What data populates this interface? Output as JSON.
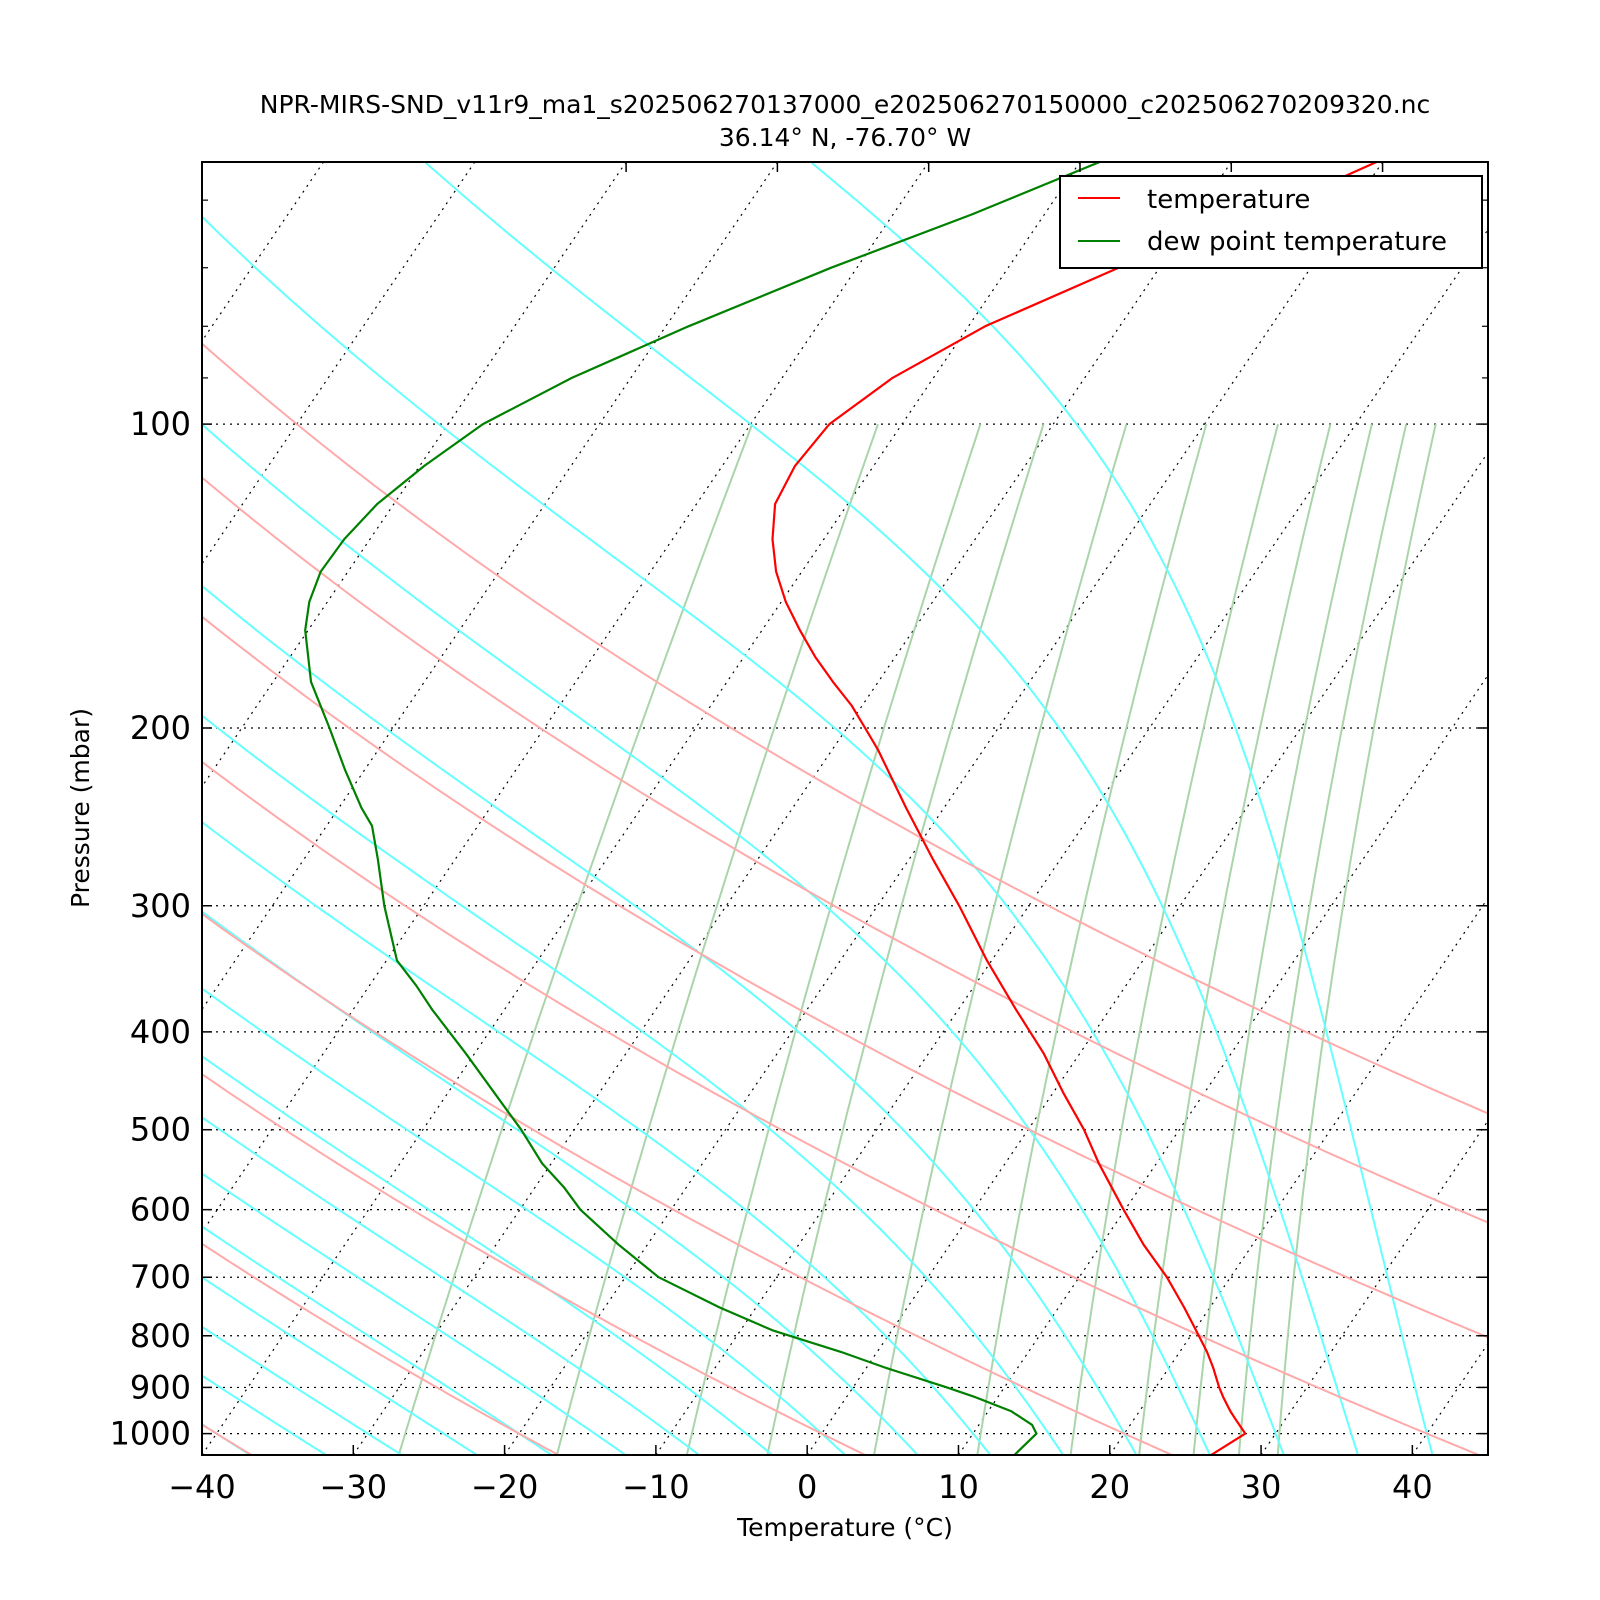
{
  "chart_data": {
    "type": "line",
    "title": "NPR-MIRS-SND_v11r9_ma1_s202506270137000_e202506270150000_c202506270209320.nc",
    "subtitle": "36.14° N, -76.70° W",
    "xlabel": "Temperature (°C)",
    "ylabel": "Pressure (mbar)",
    "xlim": [
      -40,
      45
    ],
    "ylim": [
      1050,
      55
    ],
    "y_scale": "log",
    "skew": true,
    "grid": true,
    "legend_position": "top-right",
    "x_ticks": [
      -40,
      -30,
      -20,
      -10,
      0,
      10,
      20,
      30,
      40
    ],
    "x_tick_labels": [
      "−40",
      "−30",
      "−20",
      "−10",
      "0",
      "10",
      "20",
      "30",
      "40"
    ],
    "y_ticks": [
      100,
      200,
      300,
      400,
      500,
      600,
      700,
      800,
      900,
      1000
    ],
    "y_tick_labels": [
      "100",
      "200",
      "300",
      "400",
      "500",
      "600",
      "700",
      "800",
      "900",
      "1000"
    ],
    "series": [
      {
        "name": "temperature",
        "color": "#ff0000",
        "pressure": [
          1050,
          1000,
          970,
          950,
          920,
          900,
          860,
          830,
          790,
          750,
          700,
          650,
          600,
          570,
          540,
          500,
          460,
          420,
          380,
          340,
          300,
          270,
          240,
          210,
          200,
          190,
          180,
          170,
          160,
          150,
          140,
          130,
          120,
          110,
          100,
          90,
          80,
          70,
          62,
          55
        ],
        "values": [
          26.7,
          28,
          26.8,
          26,
          24.9,
          24.2,
          22.9,
          21.8,
          20.1,
          18.3,
          15.8,
          12.8,
          9.9,
          8.1,
          6.2,
          3.7,
          0.7,
          -2.4,
          -6.2,
          -10.3,
          -14.6,
          -18.4,
          -22.5,
          -27,
          -28.8,
          -30.7,
          -33,
          -35.3,
          -37.5,
          -39.7,
          -41.7,
          -43.4,
          -44.8,
          -45.2,
          -44.8,
          -42.7,
          -38.9,
          -32.7,
          -25.8,
          -20.4
        ]
      },
      {
        "name": "dew point temperature",
        "color": "#008000",
        "pressure": [
          1050,
          1000,
          980,
          950,
          920,
          900,
          860,
          830,
          790,
          750,
          700,
          650,
          600,
          570,
          540,
          500,
          460,
          420,
          380,
          360,
          340,
          300,
          270,
          250,
          240,
          220,
          200,
          180,
          160,
          150,
          140,
          130,
          120,
          110,
          100,
          90,
          80,
          70,
          62,
          55
        ],
        "values": [
          13.7,
          14.2,
          13.5,
          11.5,
          8.5,
          6.2,
          1.2,
          -2.4,
          -7.9,
          -12.4,
          -17.8,
          -21.9,
          -26,
          -28.1,
          -30.6,
          -33.5,
          -36.9,
          -40.6,
          -44.8,
          -46.9,
          -49.3,
          -52.6,
          -55.1,
          -57,
          -58.5,
          -61.3,
          -64.2,
          -67.5,
          -70.2,
          -71.2,
          -71.8,
          -71.7,
          -71.1,
          -69.7,
          -67.7,
          -63.9,
          -58.5,
          -51.7,
          -44.8,
          -38.7
        ]
      }
    ]
  }
}
